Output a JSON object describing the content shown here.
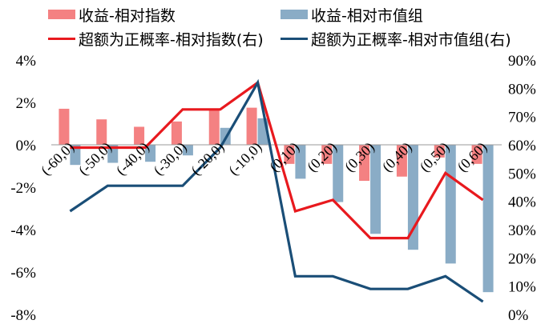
{
  "chart_data": {
    "type": "bar",
    "title": "",
    "xlabel": "",
    "ylabel": "",
    "categories": [
      "(-60,0)",
      "(-50,0)",
      "(-40,0)",
      "(-30,0)",
      "(-20,0)",
      "(-10,0)",
      "(0,10)",
      "(0,20)",
      "(0,30)",
      "(0,40)",
      "(0,50)",
      "(0,60)"
    ],
    "y_left": {
      "min": -8,
      "max": 4,
      "step": 2,
      "ticks": [
        "-8%",
        "-6%",
        "-4%",
        "-2%",
        "0%",
        "2%",
        "4%"
      ]
    },
    "y_right": {
      "min": 0,
      "max": 90,
      "step": 10,
      "ticks": [
        "0%",
        "10%",
        "20%",
        "30%",
        "40%",
        "50%",
        "60%",
        "70%",
        "80%",
        "90%"
      ]
    },
    "series": [
      {
        "name": "收益-相对指数",
        "kind": "bar",
        "axis": "left",
        "color": "#F48182",
        "values": [
          1.7,
          1.2,
          0.85,
          1.1,
          1.7,
          1.75,
          -0.9,
          -0.9,
          -1.7,
          -1.5,
          -0.6,
          -0.9
        ]
      },
      {
        "name": "收益-相对市值组",
        "kind": "bar",
        "axis": "left",
        "color": "#8AACC6",
        "values": [
          -0.95,
          -0.85,
          -0.8,
          -0.5,
          0.8,
          1.25,
          -1.6,
          -2.7,
          -4.2,
          -4.95,
          -5.6,
          -6.95
        ]
      },
      {
        "name": "超额为正概率-相对指数(右)",
        "kind": "line",
        "axis": "right",
        "color": "#E8191E",
        "values": [
          59,
          59,
          59,
          72.5,
          72.5,
          82,
          36.5,
          40.5,
          27,
          27,
          50,
          40.5
        ]
      },
      {
        "name": "超额为正概率-相对市值组(右)",
        "kind": "line",
        "axis": "right",
        "color": "#1A4E77",
        "values": [
          36.5,
          45.5,
          45.5,
          45.5,
          59,
          82,
          13.5,
          13.5,
          9,
          9,
          13.5,
          4.5
        ]
      }
    ],
    "legend_position": "top",
    "grid": false
  }
}
